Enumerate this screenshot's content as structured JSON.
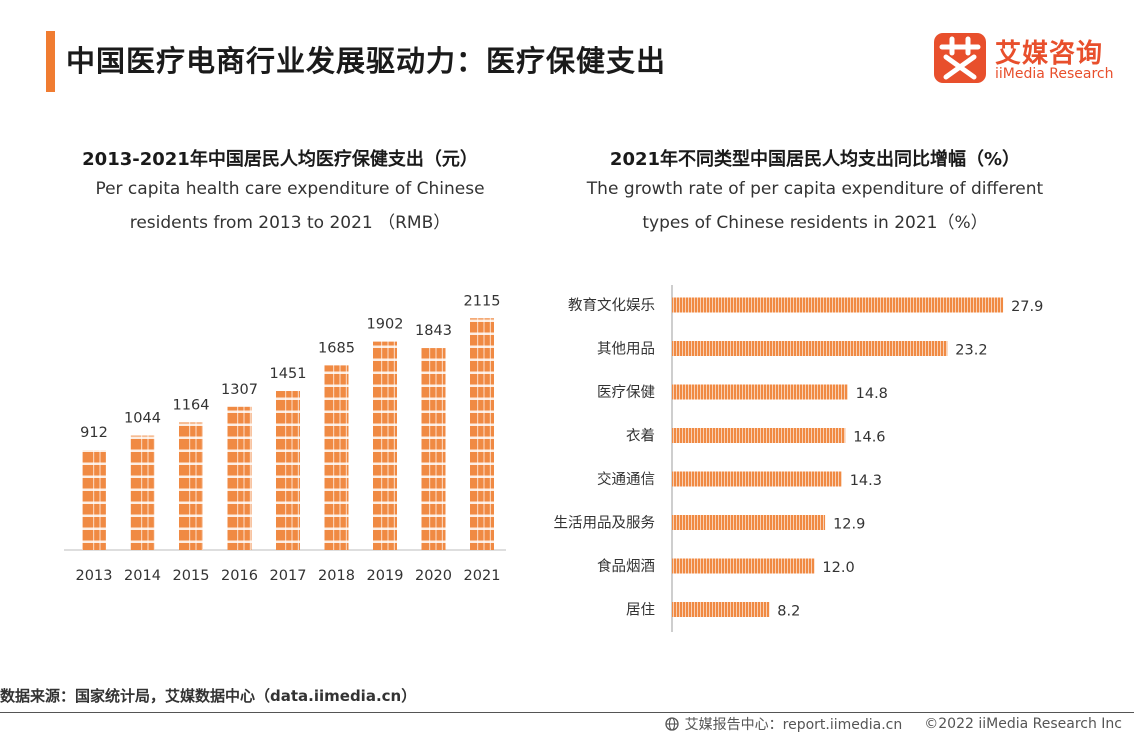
{
  "header": {
    "title": "中国医疗电商行业发展驱动力：医疗保健支出",
    "logo_cn": "艾媒咨询",
    "logo_en": "iiMedia Research",
    "accent": "#f07c31",
    "brand": "#e84f2c"
  },
  "left": {
    "title_cn": "2013-2021年中国居民人均医疗保健支出（元）",
    "title_en_line1": "Per capita health care expenditure of Chinese",
    "title_en_line2": "residents from 2013 to 2021 （RMB）"
  },
  "right": {
    "title_cn": "2021年不同类型中国居民人均支出同比增幅（%）",
    "title_en_line1": "The growth rate of per capita expenditure of different",
    "title_en_line2": "types of Chinese residents in 2021（%）"
  },
  "chart_data": [
    {
      "type": "bar",
      "categories": [
        "2013",
        "2014",
        "2015",
        "2016",
        "2017",
        "2018",
        "2019",
        "2020",
        "2021"
      ],
      "values": [
        912,
        1044,
        1164,
        1307,
        1451,
        1685,
        1902,
        1843,
        2115
      ],
      "title": "2013-2021年中国居民人均医疗保健支出（元）",
      "xlabel": "",
      "ylabel": "",
      "ylim": [
        0,
        2300
      ],
      "grid": false,
      "color": "#f08a43"
    },
    {
      "type": "bar",
      "orientation": "horizontal",
      "categories": [
        "教育文化娱乐",
        "其他用品",
        "医疗保健",
        "衣着",
        "交通通信",
        "生活用品及服务",
        "食品烟酒",
        "居住"
      ],
      "values": [
        27.9,
        23.2,
        14.8,
        14.6,
        14.3,
        12.9,
        12.0,
        8.2
      ],
      "title": "2021年不同类型中国居民人均支出同比增幅（%）",
      "xlabel": "",
      "ylabel": "",
      "xlim": [
        0,
        30
      ],
      "grid": false,
      "color": "#f08a43"
    }
  ],
  "footer": {
    "source": "数据来源：国家统计局，艾媒数据中心（data.iimedia.cn）",
    "report_center": "艾媒报告中心：report.iimedia.cn",
    "copyright": "©2022  iiMedia Research  Inc"
  }
}
